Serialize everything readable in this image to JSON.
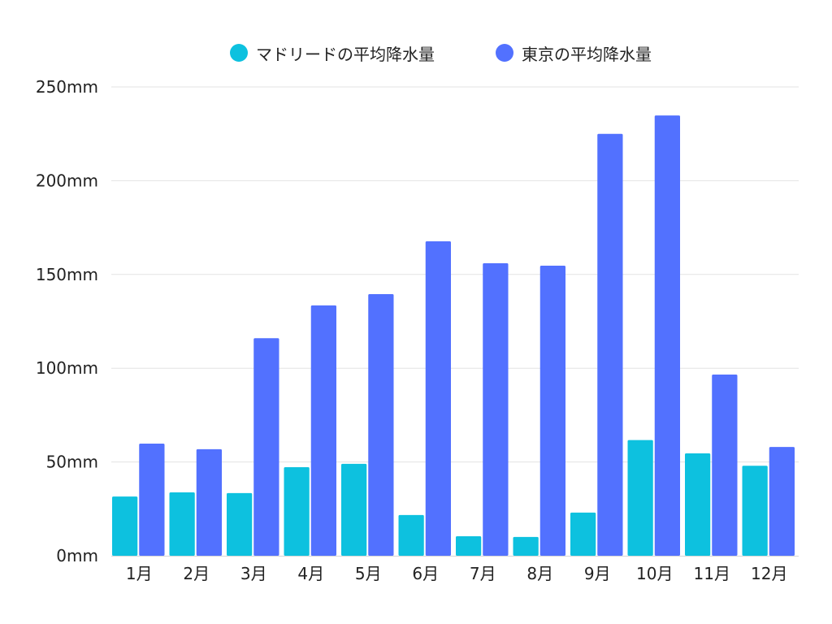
{
  "chart_data": {
    "type": "bar",
    "title": "",
    "xlabel": "",
    "ylabel": "",
    "categories": [
      "1月",
      "2月",
      "3月",
      "4月",
      "5月",
      "6月",
      "7月",
      "8月",
      "9月",
      "10月",
      "11月",
      "12月"
    ],
    "series": [
      {
        "name": "マドリードの平均降水量",
        "color": "#0dc1df",
        "values": [
          31.6,
          33.8,
          33.4,
          47.2,
          49,
          21.7,
          10.4,
          10,
          23,
          61.7,
          54.6,
          48
        ]
      },
      {
        "name": "東京の平均降水量",
        "color": "#5271ff",
        "values": [
          59.8,
          56.8,
          116,
          133.5,
          139.5,
          167.7,
          156,
          154.7,
          225,
          234.8,
          96.6,
          58
        ]
      }
    ],
    "ylim": [
      0,
      250
    ],
    "yticks": [
      0,
      50,
      100,
      150,
      200,
      250
    ],
    "ytick_labels": [
      "0mm",
      "50mm",
      "100mm",
      "150mm",
      "200mm",
      "250mm"
    ],
    "grid": true,
    "legend_position": "top-center"
  }
}
